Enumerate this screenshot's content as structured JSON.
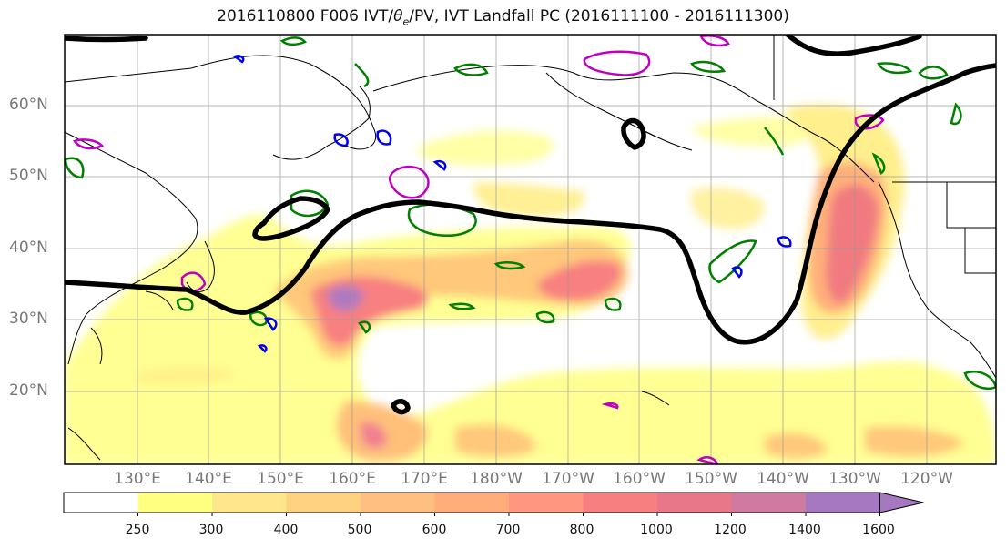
{
  "title_prefix": "2016110800 F006 IVT/",
  "title_theta": "θ",
  "title_theta_sub": "e",
  "title_suffix": "/PV, IVT Landfall PC (2016111100 - 2016111300)",
  "lat_labels": [
    "60°N",
    "50°N",
    "40°N",
    "30°N",
    "20°N"
  ],
  "lon_labels": [
    "130°E",
    "140°E",
    "150°E",
    "160°E",
    "170°E",
    "180°W",
    "170°W",
    "160°W",
    "150°W",
    "140°W",
    "130°W",
    "120°W"
  ],
  "colorbar": {
    "ticks": [
      "250",
      "300",
      "400",
      "500",
      "600",
      "700",
      "800",
      "1000",
      "1200",
      "1400",
      "1600"
    ],
    "colors": [
      "#ffffff",
      "#ffff80",
      "#ffe68a",
      "#ffd27f",
      "#ffbf80",
      "#ffae7a",
      "#ff9680",
      "#f87f7f",
      "#e9778a",
      "#d07aa0",
      "#a778c2"
    ]
  },
  "colors": {
    "ivt_low": "#ffff80",
    "ivt_mid": "#ffc87a",
    "ivt_high": "#f88080",
    "ivt_peak": "#b07ac0",
    "theta_e_contour": "#000000",
    "pv_green": "#008000",
    "pv_blue": "#0000ee",
    "pv_magenta": "#c000c0"
  }
}
